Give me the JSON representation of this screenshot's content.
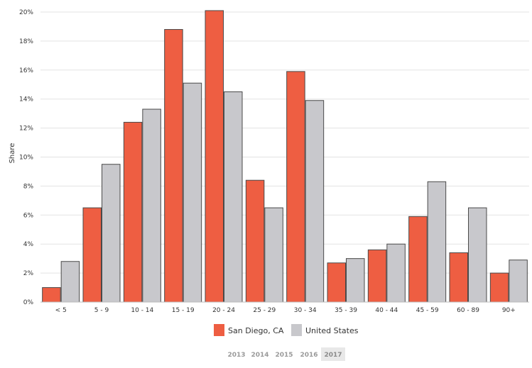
{
  "chart_data": {
    "type": "bar",
    "ylabel": "Share",
    "xlabel": "",
    "ylim": [
      0,
      20
    ],
    "y_ticks": [
      "0%",
      "2%",
      "4%",
      "6%",
      "8%",
      "10%",
      "12%",
      "14%",
      "16%",
      "18%",
      "20%"
    ],
    "categories": [
      "< 5",
      "5 - 9",
      "10 - 14",
      "15 - 19",
      "20 - 24",
      "25 - 29",
      "30 - 34",
      "35 - 39",
      "40 - 44",
      "45 - 59",
      "60 - 89",
      "90+"
    ],
    "series": [
      {
        "name": "San Diego, CA",
        "color": "#ee5e42",
        "values": [
          1.0,
          6.5,
          12.4,
          18.8,
          20.1,
          8.4,
          15.9,
          2.7,
          3.6,
          5.9,
          3.4,
          2.0
        ]
      },
      {
        "name": "United States",
        "color": "#c8c8cc",
        "values": [
          2.8,
          9.5,
          13.3,
          15.1,
          14.5,
          6.5,
          13.9,
          3.0,
          4.0,
          8.3,
          6.5,
          2.9
        ]
      }
    ],
    "grid": true,
    "legend_position": "bottom-center"
  },
  "year_selector": {
    "years": [
      "2013",
      "2014",
      "2015",
      "2016",
      "2017"
    ],
    "selected": "2017"
  }
}
